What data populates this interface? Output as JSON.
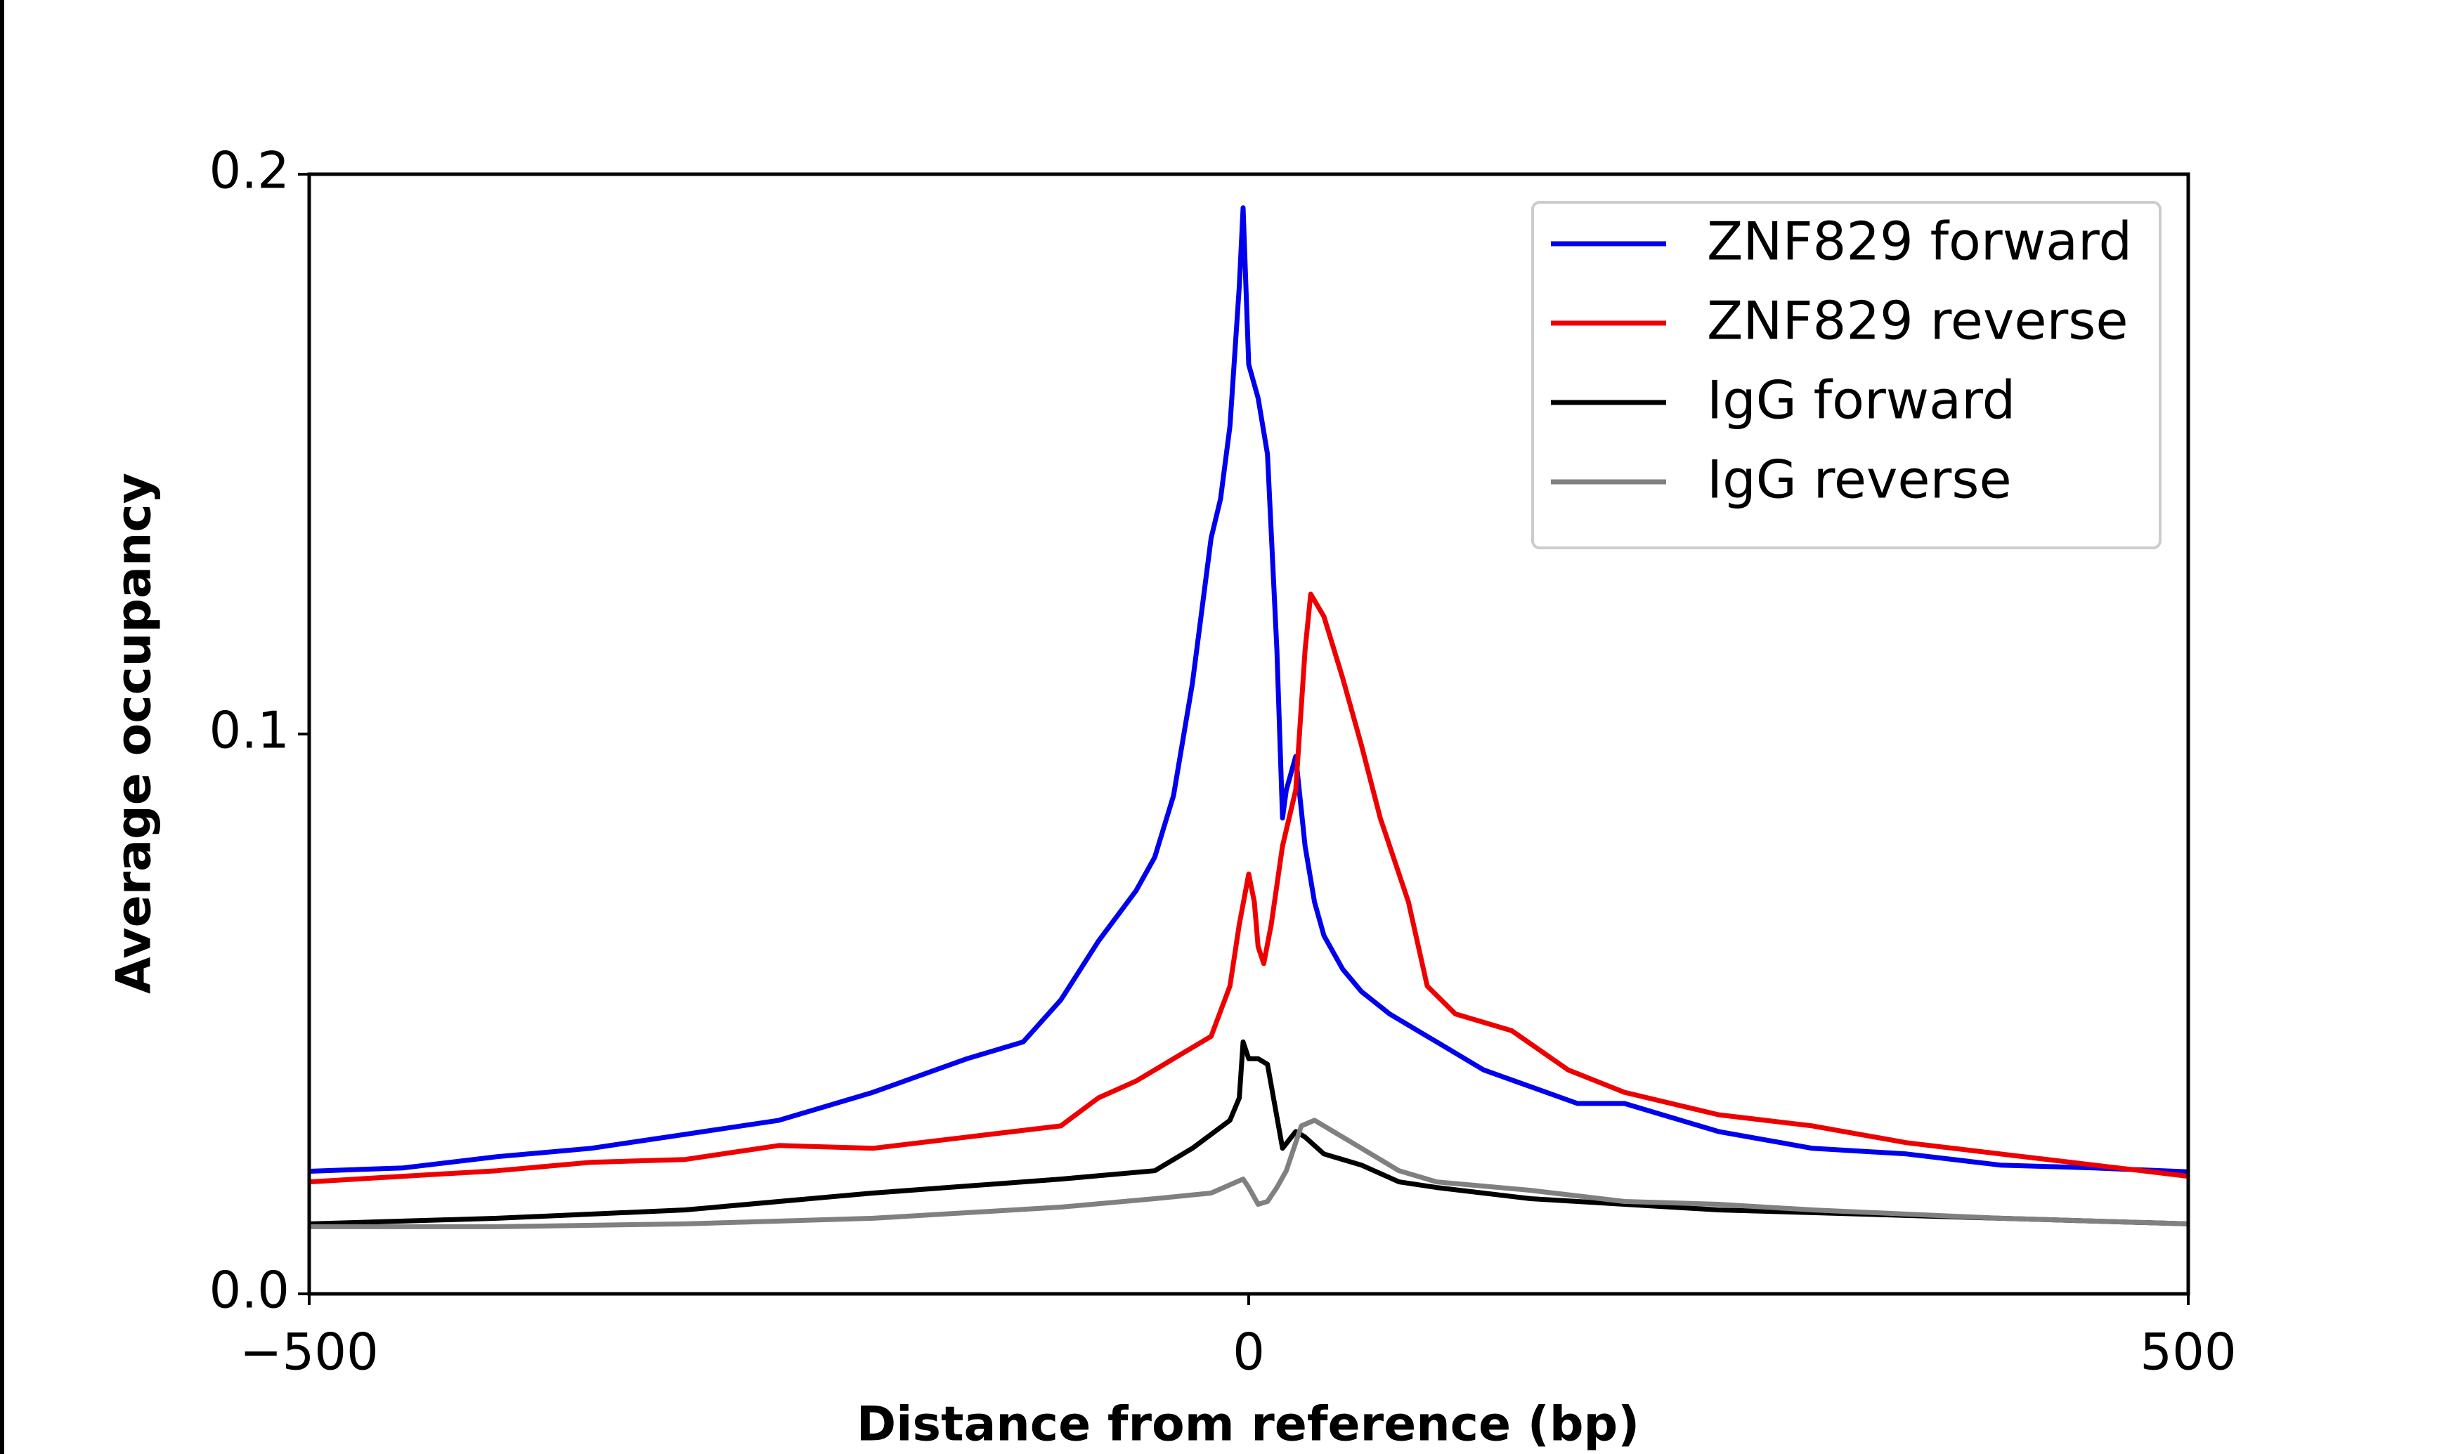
{
  "chart_data": {
    "type": "line",
    "xlabel": "Distance from reference (bp)",
    "ylabel": "Average occupancy",
    "xlim": [
      -500,
      500
    ],
    "ylim": [
      0,
      0.2
    ],
    "xticks": [
      {
        "value": -500,
        "label": "−500"
      },
      0,
      500
    ],
    "yticks": [
      {
        "value": 0,
        "label": "0.0"
      },
      0.1,
      0.2
    ],
    "grid": false,
    "legend": "upper right",
    "series": [
      {
        "name": "ZNF829 forward",
        "color": "#0000ee",
        "x": [
          -500,
          -450,
          -400,
          -350,
          -300,
          -250,
          -200,
          -150,
          -120,
          -100,
          -80,
          -60,
          -50,
          -40,
          -30,
          -20,
          -15,
          -10,
          -5,
          -3,
          0,
          5,
          10,
          15,
          18,
          20,
          25,
          30,
          35,
          40,
          50,
          60,
          75,
          100,
          125,
          150,
          175,
          200,
          250,
          300,
          350,
          400,
          450,
          500
        ],
        "values": [
          0.0219,
          0.0225,
          0.0245,
          0.026,
          0.0285,
          0.031,
          0.036,
          0.042,
          0.045,
          0.0525,
          0.063,
          0.072,
          0.078,
          0.089,
          0.109,
          0.135,
          0.142,
          0.155,
          0.18,
          0.194,
          0.166,
          0.16,
          0.15,
          0.115,
          0.085,
          0.09,
          0.096,
          0.08,
          0.07,
          0.064,
          0.058,
          0.054,
          0.05,
          0.045,
          0.04,
          0.037,
          0.034,
          0.034,
          0.029,
          0.026,
          0.025,
          0.023,
          0.0225,
          0.0218
        ]
      },
      {
        "name": "ZNF829 reverse",
        "color": "#ee0000",
        "x": [
          -500,
          -450,
          -400,
          -350,
          -300,
          -250,
          -200,
          -150,
          -100,
          -80,
          -60,
          -40,
          -20,
          -10,
          -5,
          0,
          3,
          5,
          8,
          12,
          18,
          25,
          30,
          33,
          40,
          50,
          60,
          70,
          85,
          95,
          110,
          140,
          170,
          200,
          250,
          300,
          350,
          400,
          450,
          500
        ],
        "values": [
          0.02,
          0.021,
          0.022,
          0.0235,
          0.024,
          0.0265,
          0.026,
          0.028,
          0.03,
          0.035,
          0.038,
          0.042,
          0.046,
          0.055,
          0.066,
          0.075,
          0.07,
          0.062,
          0.059,
          0.066,
          0.08,
          0.09,
          0.115,
          0.125,
          0.121,
          0.11,
          0.098,
          0.085,
          0.07,
          0.055,
          0.05,
          0.047,
          0.04,
          0.036,
          0.032,
          0.03,
          0.027,
          0.025,
          0.023,
          0.021
        ]
      },
      {
        "name": "IgG forward",
        "color": "#000000",
        "x": [
          -500,
          -400,
          -300,
          -200,
          -100,
          -50,
          -30,
          -10,
          -5,
          -3,
          0,
          5,
          10,
          18,
          25,
          30,
          40,
          60,
          80,
          100,
          150,
          200,
          250,
          300,
          400,
          500
        ],
        "values": [
          0.0125,
          0.0135,
          0.015,
          0.018,
          0.0205,
          0.022,
          0.026,
          0.031,
          0.035,
          0.045,
          0.042,
          0.042,
          0.041,
          0.026,
          0.029,
          0.028,
          0.025,
          0.023,
          0.02,
          0.019,
          0.017,
          0.016,
          0.015,
          0.0145,
          0.0135,
          0.0125
        ]
      },
      {
        "name": "IgG reverse",
        "color": "#808080",
        "x": [
          -500,
          -400,
          -300,
          -200,
          -100,
          -50,
          -20,
          -3,
          0,
          5,
          10,
          15,
          20,
          28,
          35,
          50,
          80,
          100,
          150,
          200,
          250,
          300,
          400,
          500
        ],
        "values": [
          0.012,
          0.012,
          0.0125,
          0.0135,
          0.0155,
          0.017,
          0.018,
          0.0205,
          0.019,
          0.016,
          0.0165,
          0.019,
          0.022,
          0.03,
          0.031,
          0.028,
          0.022,
          0.02,
          0.0185,
          0.0165,
          0.016,
          0.015,
          0.0135,
          0.0125
        ]
      }
    ]
  }
}
